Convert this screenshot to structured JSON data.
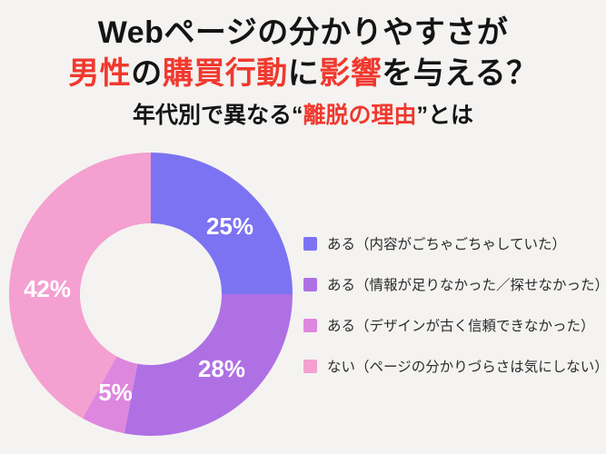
{
  "background_color": "#f4f3f1",
  "accent_colors": {
    "red": "#f0392e",
    "black": "#141414",
    "donut_label": "#ffffff"
  },
  "title": {
    "line1_segments": [
      {
        "text": "Webページの分かりやすさが",
        "color": "black"
      }
    ],
    "line2_segments": [
      {
        "text": "男性",
        "color": "red"
      },
      {
        "text": "の",
        "color": "black"
      },
      {
        "text": "購買行動",
        "color": "red"
      },
      {
        "text": "に",
        "color": "black"
      },
      {
        "text": "影響",
        "color": "red"
      },
      {
        "text": "を与える？",
        "color": "black"
      }
    ],
    "line3_segments": [
      {
        "text": "年代別で異なる“",
        "color": "black"
      },
      {
        "text": "離脱の理由",
        "color": "red"
      },
      {
        "text": "”とは",
        "color": "black"
      }
    ]
  },
  "chart_data": {
    "type": "pie",
    "subtype": "donut",
    "title": "Webページの分かりやすさが男性の購買行動に影響を与える？",
    "subtitle": "年代別で異なる“離脱の理由”とは",
    "direction": "clockwise",
    "start_angle_deg_from_top": 0,
    "legend_position": "right",
    "slices": [
      {
        "label": "ある（内容がごちゃごちゃしていた）",
        "value": 25,
        "data_label": "25%",
        "color": "#7c73f2"
      },
      {
        "label": "ある（情報が足りなかった／探せなかった）",
        "value": 28,
        "data_label": "28%",
        "color": "#af70e4"
      },
      {
        "label": "ある（デザインが古く信頼できなかった）",
        "value": 5,
        "data_label": "5%",
        "color": "#de87de"
      },
      {
        "label": "ない（ページの分かりづらさは気にしない）",
        "value": 42,
        "data_label": "42%",
        "color": "#f4a0d0"
      }
    ]
  }
}
